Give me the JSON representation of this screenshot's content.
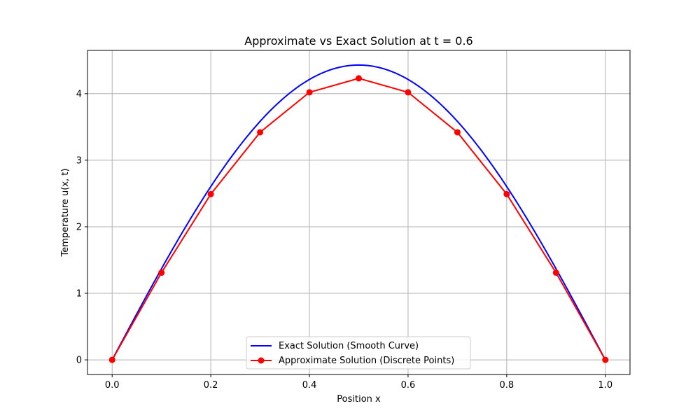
{
  "chart_data": {
    "type": "line",
    "title": "Approximate vs Exact Solution at t = 0.6",
    "xlabel": "Position x",
    "ylabel": "Temperature u(x, t)",
    "xlim": [
      -0.05,
      1.05
    ],
    "ylim": [
      -0.22,
      4.65
    ],
    "xticks": [
      0.0,
      0.2,
      0.4,
      0.6,
      0.8,
      1.0
    ],
    "xtick_labels": [
      "0.0",
      "0.2",
      "0.4",
      "0.6",
      "0.8",
      "1.0"
    ],
    "yticks": [
      0,
      1,
      2,
      3,
      4
    ],
    "ytick_labels": [
      "0",
      "1",
      "2",
      "3",
      "4"
    ],
    "grid": true,
    "legend_position": "bottom-center",
    "series": [
      {
        "name": "Exact Solution (Smooth Curve)",
        "color": "#0000ff",
        "style": "line",
        "amplitude": 4.43,
        "function": "amplitude * sin(pi * x)",
        "x_range": [
          0,
          1
        ]
      },
      {
        "name": "Approximate Solution (Discrete Points)",
        "color": "#ff0000",
        "style": "line-with-markers",
        "x": [
          0.0,
          0.1,
          0.2,
          0.3,
          0.4,
          0.5,
          0.6,
          0.7,
          0.8,
          0.9,
          1.0
        ],
        "y": [
          0.0,
          1.31,
          2.49,
          3.42,
          4.02,
          4.23,
          4.02,
          3.42,
          2.49,
          1.31,
          0.0
        ]
      }
    ]
  }
}
